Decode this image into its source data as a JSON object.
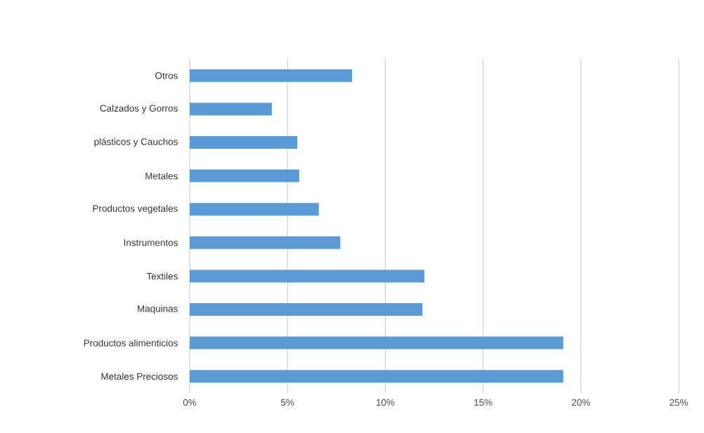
{
  "chart_data": {
    "type": "bar",
    "orientation": "horizontal",
    "categories": [
      "Otros",
      "Calzados y Gorros",
      "plásticos y Cauchos",
      "Metales",
      "Productos vegetales",
      "Instrumentos",
      "Textiles",
      "Maquinas",
      "Productos alimenticios",
      "Metales Preciosos"
    ],
    "values": [
      8.3,
      4.2,
      5.5,
      5.6,
      6.6,
      7.7,
      12.0,
      11.9,
      19.1,
      19.1
    ],
    "color": "#5b9bd5",
    "xlim": [
      0,
      25
    ],
    "xticks": [
      {
        "value": 0,
        "label": "0%"
      },
      {
        "value": 5,
        "label": "5%"
      },
      {
        "value": 10,
        "label": "10%"
      },
      {
        "value": 15,
        "label": "15%"
      },
      {
        "value": 20,
        "label": "20%"
      },
      {
        "value": 25,
        "label": "25%"
      }
    ],
    "grid": "x"
  }
}
